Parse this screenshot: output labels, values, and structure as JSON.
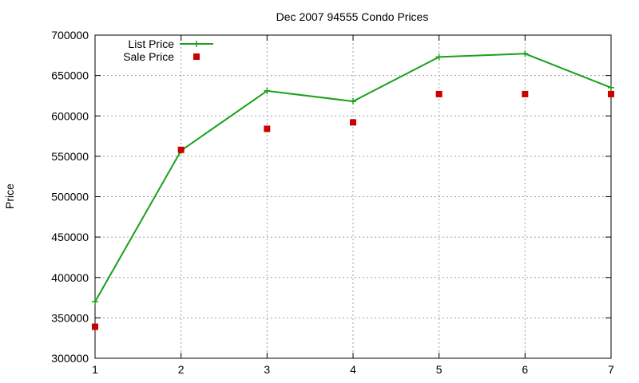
{
  "chart_data": {
    "type": "line",
    "title": "Dec 2007 94555 Condo Prices",
    "xlabel": "",
    "ylabel": "Price",
    "x": [
      1,
      2,
      3,
      4,
      5,
      6,
      7
    ],
    "xlim": [
      1,
      7
    ],
    "ylim": [
      300000,
      700000
    ],
    "yticks": [
      300000,
      350000,
      400000,
      450000,
      500000,
      550000,
      600000,
      650000,
      700000
    ],
    "grid": true,
    "legend_position": "top-left",
    "series": [
      {
        "name": "List Price",
        "style": "line+cross",
        "color": "#1aa01a",
        "values": [
          370000,
          557000,
          631000,
          618000,
          673000,
          677000,
          635000
        ]
      },
      {
        "name": "Sale Price",
        "style": "square-markers",
        "color": "#cc0000",
        "values": [
          339000,
          558000,
          584000,
          592000,
          627000,
          627000,
          627000
        ]
      }
    ]
  }
}
